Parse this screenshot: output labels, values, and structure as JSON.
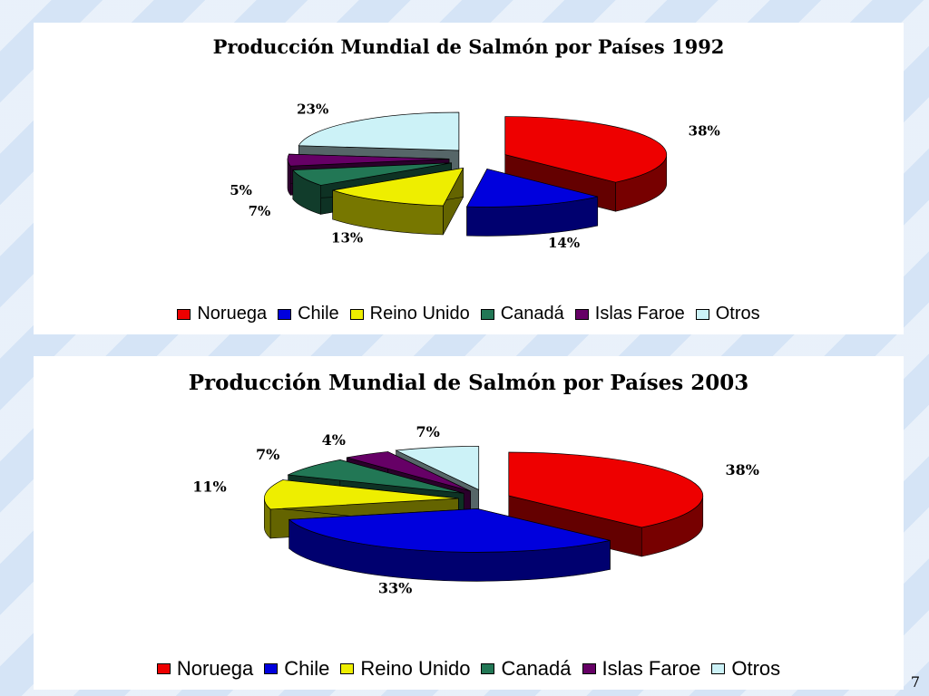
{
  "page": {
    "number": "7"
  },
  "colors": {
    "Noruega": "#ee0000",
    "Chile": "#0000dd",
    "Reino Unido": "#eeee00",
    "Canadá": "#227755",
    "Islas Faroe": "#660066",
    "Otros": "#ccf2f7"
  },
  "chart_data": [
    {
      "type": "pie",
      "title": "Producción Mundial de Salmón por Países 1992",
      "categories": [
        "Noruega",
        "Chile",
        "Reino Unido",
        "Canadá",
        "Islas Faroe",
        "Otros"
      ],
      "values": [
        38,
        14,
        13,
        7,
        5,
        23
      ],
      "data_labels": [
        "38%",
        "14%",
        "13%",
        "7%",
        "5%",
        "23%"
      ],
      "legend_position": "bottom",
      "style": "3D exploded"
    },
    {
      "type": "pie",
      "title": "Producción Mundial de Salmón por Países 2003",
      "categories": [
        "Noruega",
        "Chile",
        "Reino Unido",
        "Canadá",
        "Islas Faroe",
        "Otros"
      ],
      "values": [
        38,
        33,
        11,
        7,
        4,
        7
      ],
      "data_labels": [
        "38%",
        "33%",
        "11%",
        "7%",
        "4%",
        "7%"
      ],
      "legend_position": "bottom",
      "style": "3D exploded"
    }
  ]
}
